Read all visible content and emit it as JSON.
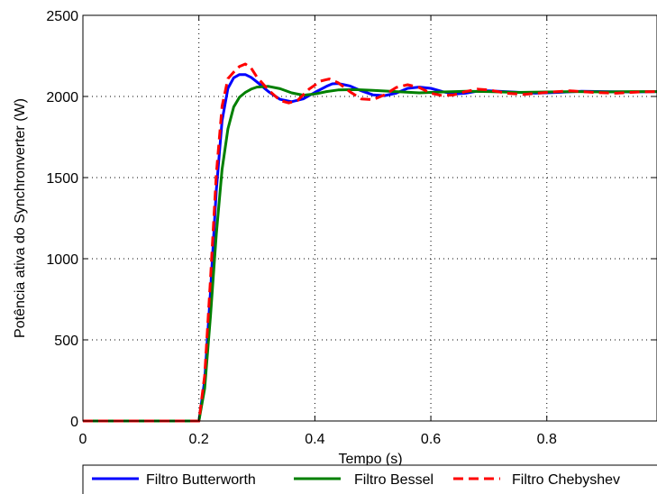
{
  "chart_data": {
    "type": "line",
    "xlabel": "Tempo (s)",
    "ylabel": "Potência ativa do Synchronverter (W)",
    "xlim": [
      0,
      0.99
    ],
    "ylim": [
      0,
      2500
    ],
    "x_ticks": [
      0,
      0.2,
      0.4,
      0.6,
      0.8
    ],
    "x_tick_labels": [
      "0",
      "0.2",
      "0.4",
      "0.6",
      "0.8"
    ],
    "y_ticks": [
      0,
      500,
      1000,
      1500,
      2000,
      2500
    ],
    "y_tick_labels": [
      "0",
      "500",
      "1000",
      "1500",
      "2000",
      "2500"
    ],
    "grid": true,
    "legend_position": "bottom",
    "series": [
      {
        "name": "Filtro Butterworth",
        "color": "#0000ff",
        "dash": "solid",
        "points": [
          [
            0,
            0
          ],
          [
            0.2,
            0
          ],
          [
            0.21,
            250
          ],
          [
            0.22,
            800
          ],
          [
            0.23,
            1420
          ],
          [
            0.24,
            1850
          ],
          [
            0.25,
            2050
          ],
          [
            0.26,
            2115
          ],
          [
            0.27,
            2135
          ],
          [
            0.28,
            2135
          ],
          [
            0.29,
            2118
          ],
          [
            0.3,
            2090
          ],
          [
            0.32,
            2030
          ],
          [
            0.34,
            1982
          ],
          [
            0.36,
            1968
          ],
          [
            0.38,
            1985
          ],
          [
            0.4,
            2025
          ],
          [
            0.42,
            2062
          ],
          [
            0.43,
            2078
          ],
          [
            0.44,
            2080
          ],
          [
            0.46,
            2065
          ],
          [
            0.48,
            2035
          ],
          [
            0.5,
            2010
          ],
          [
            0.52,
            2005
          ],
          [
            0.54,
            2020
          ],
          [
            0.56,
            2050
          ],
          [
            0.58,
            2058
          ],
          [
            0.6,
            2050
          ],
          [
            0.62,
            2030
          ],
          [
            0.64,
            2015
          ],
          [
            0.66,
            2020
          ],
          [
            0.68,
            2032
          ],
          [
            0.7,
            2035
          ],
          [
            0.74,
            2028
          ],
          [
            0.78,
            2020
          ],
          [
            0.82,
            2025
          ],
          [
            0.86,
            2032
          ],
          [
            0.9,
            2030
          ],
          [
            0.95,
            2028
          ],
          [
            0.99,
            2030
          ]
        ]
      },
      {
        "name": "Filtro Bessel",
        "color": "#008000",
        "dash": "solid",
        "points": [
          [
            0,
            0
          ],
          [
            0.2,
            0
          ],
          [
            0.21,
            200
          ],
          [
            0.22,
            650
          ],
          [
            0.23,
            1150
          ],
          [
            0.24,
            1550
          ],
          [
            0.25,
            1800
          ],
          [
            0.26,
            1935
          ],
          [
            0.27,
            1995
          ],
          [
            0.28,
            2025
          ],
          [
            0.29,
            2045
          ],
          [
            0.3,
            2058
          ],
          [
            0.32,
            2062
          ],
          [
            0.34,
            2048
          ],
          [
            0.36,
            2022
          ],
          [
            0.38,
            2008
          ],
          [
            0.4,
            2015
          ],
          [
            0.42,
            2030
          ],
          [
            0.44,
            2040
          ],
          [
            0.47,
            2042
          ],
          [
            0.5,
            2038
          ],
          [
            0.54,
            2030
          ],
          [
            0.58,
            2022
          ],
          [
            0.62,
            2028
          ],
          [
            0.66,
            2032
          ],
          [
            0.7,
            2030
          ],
          [
            0.75,
            2025
          ],
          [
            0.8,
            2028
          ],
          [
            0.85,
            2030
          ],
          [
            0.9,
            2028
          ],
          [
            0.95,
            2030
          ],
          [
            0.99,
            2030
          ]
        ]
      },
      {
        "name": "Filtro Chebyshev",
        "color": "#ff0000",
        "dash": "dashed",
        "points": [
          [
            0,
            0
          ],
          [
            0.2,
            0
          ],
          [
            0.21,
            280
          ],
          [
            0.22,
            880
          ],
          [
            0.23,
            1520
          ],
          [
            0.24,
            1940
          ],
          [
            0.25,
            2110
          ],
          [
            0.26,
            2150
          ],
          [
            0.27,
            2185
          ],
          [
            0.28,
            2200
          ],
          [
            0.29,
            2175
          ],
          [
            0.3,
            2120
          ],
          [
            0.32,
            2040
          ],
          [
            0.34,
            1975
          ],
          [
            0.355,
            1960
          ],
          [
            0.37,
            1975
          ],
          [
            0.39,
            2045
          ],
          [
            0.41,
            2095
          ],
          [
            0.425,
            2108
          ],
          [
            0.44,
            2085
          ],
          [
            0.46,
            2030
          ],
          [
            0.48,
            1985
          ],
          [
            0.5,
            1980
          ],
          [
            0.52,
            2010
          ],
          [
            0.54,
            2055
          ],
          [
            0.56,
            2072
          ],
          [
            0.58,
            2055
          ],
          [
            0.6,
            2020
          ],
          [
            0.62,
            2005
          ],
          [
            0.64,
            2010
          ],
          [
            0.66,
            2030
          ],
          [
            0.68,
            2045
          ],
          [
            0.7,
            2040
          ],
          [
            0.73,
            2020
          ],
          [
            0.76,
            2012
          ],
          [
            0.8,
            2025
          ],
          [
            0.84,
            2035
          ],
          [
            0.88,
            2025
          ],
          [
            0.92,
            2020
          ],
          [
            0.96,
            2028
          ],
          [
            0.99,
            2030
          ]
        ]
      }
    ]
  }
}
